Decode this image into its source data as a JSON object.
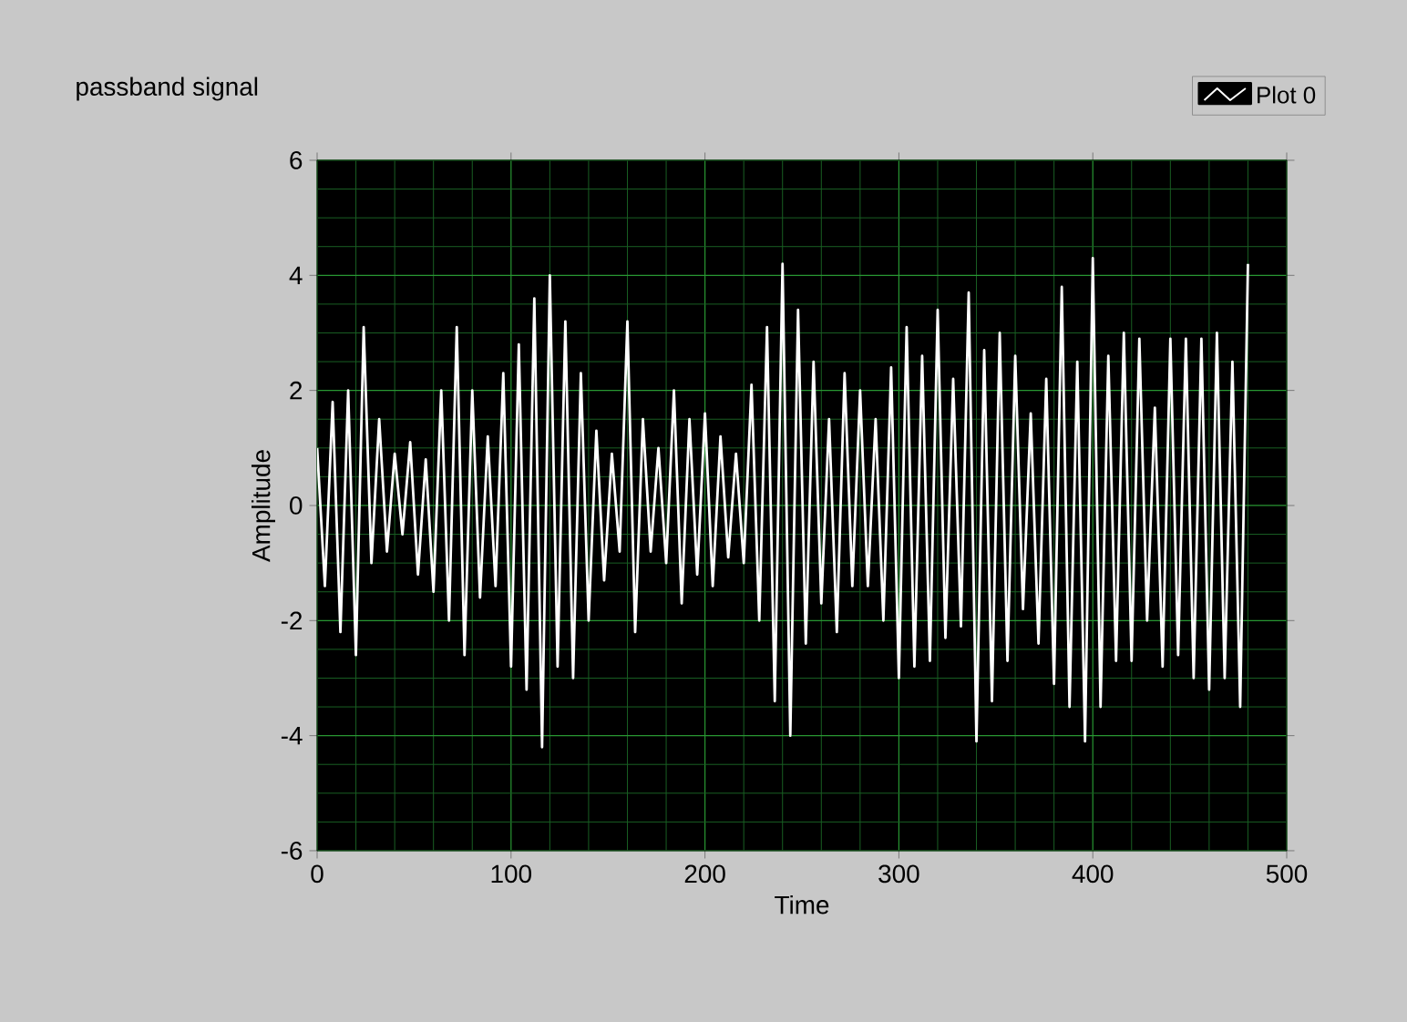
{
  "chart_data": {
    "type": "line",
    "title": "passband signal",
    "xlabel": "Time",
    "ylabel": "Amplitude",
    "xlim": [
      0,
      500
    ],
    "ylim": [
      -6,
      6
    ],
    "xticks": [
      0,
      {
        "value": 20,
        "label": null
      },
      {
        "value": 40,
        "label": null
      },
      {
        "value": 60,
        "label": null
      },
      {
        "value": 80,
        "label": null
      },
      100,
      {
        "value": 120,
        "label": null
      },
      {
        "value": 140,
        "label": null
      },
      {
        "value": 160,
        "label": null
      },
      {
        "value": 180,
        "label": null
      },
      200,
      {
        "value": 220,
        "label": null
      },
      {
        "value": 240,
        "label": null
      },
      {
        "value": 260,
        "label": null
      },
      {
        "value": 280,
        "label": null
      },
      300,
      {
        "value": 320,
        "label": null
      },
      {
        "value": 340,
        "label": null
      },
      {
        "value": 360,
        "label": null
      },
      {
        "value": 380,
        "label": null
      },
      400,
      {
        "value": 420,
        "label": null
      },
      {
        "value": 440,
        "label": null
      },
      {
        "value": 460,
        "label": null
      },
      {
        "value": 480,
        "label": null
      },
      500
    ],
    "yticks": [
      -6,
      {
        "value": -5.5,
        "label": null
      },
      {
        "value": -5,
        "label": null
      },
      {
        "value": -4.5,
        "label": null
      },
      -4,
      {
        "value": -3.5,
        "label": null
      },
      {
        "value": -3,
        "label": null
      },
      {
        "value": -2.5,
        "label": null
      },
      -2,
      {
        "value": -1.5,
        "label": null
      },
      {
        "value": -1,
        "label": null
      },
      {
        "value": -0.5,
        "label": null
      },
      0,
      {
        "value": 0.5,
        "label": null
      },
      {
        "value": 1,
        "label": null
      },
      {
        "value": 1.5,
        "label": null
      },
      2,
      {
        "value": 2.5,
        "label": null
      },
      {
        "value": 3,
        "label": null
      },
      {
        "value": 3.5,
        "label": null
      },
      4,
      {
        "value": 4.5,
        "label": null
      },
      {
        "value": 5,
        "label": null
      },
      {
        "value": 5.5,
        "label": null
      },
      6
    ],
    "grid": true,
    "legend": "top right",
    "marker": "none",
    "line_style": "solid",
    "series": [
      {
        "name": "Plot 0",
        "color": "#ffffff",
        "x": [
          0,
          4,
          8,
          12,
          16,
          20,
          24,
          28,
          32,
          36,
          40,
          44,
          48,
          52,
          56,
          60,
          64,
          68,
          72,
          76,
          80,
          84,
          88,
          92,
          96,
          100,
          104,
          108,
          112,
          116,
          120,
          124,
          128,
          132,
          136,
          140,
          144,
          148,
          152,
          156,
          160,
          164,
          168,
          172,
          176,
          180,
          184,
          188,
          192,
          196,
          200,
          204,
          208,
          212,
          216,
          220,
          224,
          228,
          232,
          236,
          240,
          244,
          248,
          252,
          256,
          260,
          264,
          268,
          272,
          276,
          280,
          284,
          288,
          292,
          296,
          300,
          304,
          308,
          312,
          316,
          320,
          324,
          328,
          332,
          336,
          340,
          344,
          348,
          352,
          356,
          360,
          364,
          368,
          372,
          376,
          380,
          384,
          388,
          392,
          396,
          400,
          404,
          408,
          412,
          416,
          420,
          424,
          428,
          432,
          436,
          440,
          444,
          448,
          452,
          456,
          460,
          464,
          468,
          472,
          476,
          480
        ],
        "values": [
          1.0,
          -1.4,
          1.8,
          -2.2,
          2.0,
          -2.6,
          3.1,
          -1.0,
          1.5,
          -0.8,
          0.9,
          -0.5,
          1.1,
          -1.2,
          0.8,
          -1.5,
          2.0,
          -2.0,
          3.1,
          -2.6,
          2.0,
          -1.6,
          1.2,
          -1.4,
          2.3,
          -2.8,
          2.8,
          -3.2,
          3.6,
          -4.2,
          4.0,
          -2.8,
          3.2,
          -3.0,
          2.3,
          -2.0,
          1.3,
          -1.3,
          0.9,
          -0.8,
          3.2,
          -2.2,
          1.5,
          -0.8,
          1.0,
          -1.0,
          2.0,
          -1.7,
          1.5,
          -1.2,
          1.6,
          -1.4,
          1.2,
          -0.9,
          0.9,
          -1.0,
          2.1,
          -2.0,
          3.1,
          -3.4,
          4.2,
          -4.0,
          3.4,
          -2.4,
          2.5,
          -1.7,
          1.5,
          -2.2,
          2.3,
          -1.4,
          2.0,
          -1.4,
          1.5,
          -2.0,
          2.4,
          -3.0,
          3.1,
          -2.8,
          2.6,
          -2.7,
          3.4,
          -2.3,
          2.2,
          -2.1,
          3.7,
          -4.1,
          2.7,
          -3.4,
          3.0,
          -2.7,
          2.6,
          -1.8,
          1.6,
          -2.4,
          2.2,
          -3.1,
          3.8,
          -3.5,
          2.5,
          -4.1,
          4.3,
          -3.5,
          2.6,
          -2.7,
          3.0,
          -2.7,
          2.9,
          -2.0,
          1.7,
          -2.8,
          2.9,
          -2.6,
          2.9,
          -3.0,
          2.9,
          -3.2,
          3.0,
          -3.0,
          2.5,
          -3.5,
          4.2
        ]
      }
    ]
  }
}
